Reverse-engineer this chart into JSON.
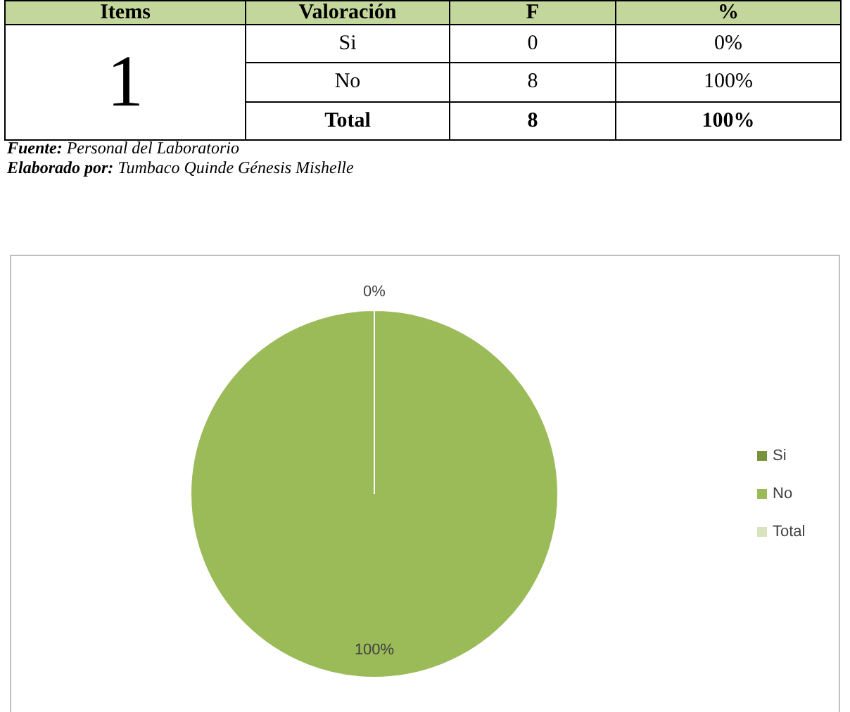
{
  "chart_data": {
    "type": "pie",
    "categories": [
      "Si",
      "No",
      "Total"
    ],
    "values": [
      0,
      100,
      null
    ],
    "colors": [
      "#77933c",
      "#9bbb59",
      "#d7e4bd"
    ],
    "value_labels": [
      "0%",
      "100%",
      null
    ],
    "legend": "right",
    "annotations": [
      "Items",
      "Valoración",
      "F",
      "%",
      "1",
      "Si",
      "0",
      "0%",
      "No",
      "8",
      "100%",
      "Total",
      "8",
      "100%",
      "Fuente: Personal del Laboratorio",
      "Elaborado por: Tumbaco Quinde Génesis Mishelle"
    ]
  }
}
